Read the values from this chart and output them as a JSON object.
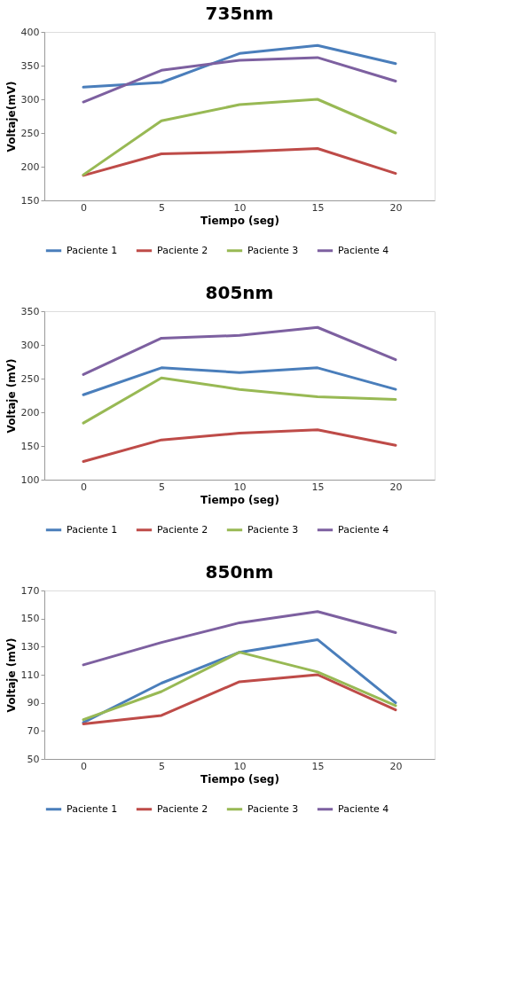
{
  "chart_data": [
    {
      "type": "line",
      "title": "735nm",
      "xlabel": "Tiempo (seg)",
      "ylabel": "Voltaje(mV)",
      "categories": [
        "0",
        "5",
        "10",
        "15",
        "20"
      ],
      "ylim": [
        150,
        400
      ],
      "yticks": [
        150,
        200,
        250,
        300,
        350,
        400
      ],
      "grid": false,
      "legend": "bottom",
      "marker": "none",
      "line_style": "solid",
      "series": [
        {
          "name": "Paciente 1",
          "color": "#4a7ebb",
          "values": [
            318,
            325,
            368,
            380,
            353
          ]
        },
        {
          "name": "Paciente 2",
          "color": "#be4b48",
          "values": [
            187,
            219,
            222,
            227,
            190
          ]
        },
        {
          "name": "Paciente 3",
          "color": "#98b954",
          "values": [
            188,
            268,
            292,
            300,
            250
          ]
        },
        {
          "name": "Paciente 4",
          "color": "#7d60a0",
          "values": [
            296,
            343,
            358,
            362,
            327
          ]
        }
      ]
    },
    {
      "type": "line",
      "title": "805nm",
      "xlabel": "Tiempo (seg)",
      "ylabel": "Voltaje (mV)",
      "categories": [
        "0",
        "5",
        "10",
        "15",
        "20"
      ],
      "ylim": [
        100,
        350
      ],
      "yticks": [
        100,
        150,
        200,
        250,
        300,
        350
      ],
      "grid": false,
      "legend": "bottom",
      "marker": "none",
      "line_style": "solid",
      "series": [
        {
          "name": "Paciente 1",
          "color": "#4a7ebb",
          "values": [
            226,
            266,
            259,
            266,
            234
          ]
        },
        {
          "name": "Paciente 2",
          "color": "#be4b48",
          "values": [
            127,
            159,
            169,
            174,
            151
          ]
        },
        {
          "name": "Paciente 3",
          "color": "#98b954",
          "values": [
            184,
            251,
            234,
            223,
            219
          ]
        },
        {
          "name": "Paciente 4",
          "color": "#7d60a0",
          "values": [
            256,
            310,
            314,
            326,
            278
          ]
        }
      ]
    },
    {
      "type": "line",
      "title": "850nm",
      "xlabel": "Tiempo (seg)",
      "ylabel": "Voltaje (mV)",
      "categories": [
        "0",
        "5",
        "10",
        "15",
        "20"
      ],
      "ylim": [
        50,
        170
      ],
      "yticks": [
        50,
        70,
        90,
        110,
        130,
        150,
        170
      ],
      "grid": false,
      "legend": "bottom",
      "marker": "none",
      "line_style": "solid",
      "series": [
        {
          "name": "Paciente 1",
          "color": "#4a7ebb",
          "values": [
            76,
            104,
            126,
            135,
            90
          ]
        },
        {
          "name": "Paciente 2",
          "color": "#be4b48",
          "values": [
            75,
            81,
            105,
            110,
            85
          ]
        },
        {
          "name": "Paciente 3",
          "color": "#98b954",
          "values": [
            78,
            98,
            126,
            112,
            88
          ]
        },
        {
          "name": "Paciente 4",
          "color": "#7d60a0",
          "values": [
            117,
            133,
            147,
            155,
            140
          ]
        }
      ]
    }
  ]
}
